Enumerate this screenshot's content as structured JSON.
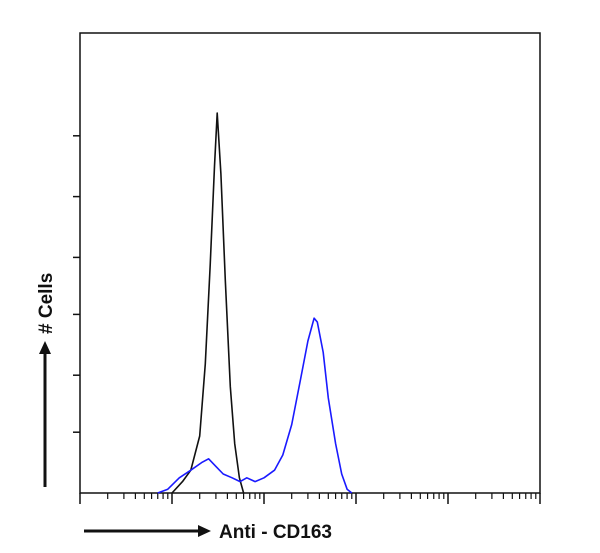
{
  "chart_data": {
    "type": "line",
    "title": "",
    "xlabel": "Anti - CD163",
    "ylabel": "# Cells",
    "x_scale": "log",
    "xlim": [
      0.1,
      10000
    ],
    "ylim": [
      0,
      100
    ],
    "grid": false,
    "legend": "none",
    "y_tick_values": [
      16,
      31,
      47,
      62,
      78,
      94
    ],
    "series": [
      {
        "color": "#111111",
        "points": [
          [
            1.0,
            0
          ],
          [
            1.3,
            3
          ],
          [
            1.6,
            6
          ],
          [
            2.0,
            15
          ],
          [
            2.3,
            34
          ],
          [
            2.6,
            60
          ],
          [
            2.9,
            86
          ],
          [
            3.1,
            100
          ],
          [
            3.4,
            84
          ],
          [
            3.8,
            56
          ],
          [
            4.3,
            28
          ],
          [
            4.8,
            13
          ],
          [
            5.4,
            4
          ],
          [
            6.0,
            0
          ]
        ]
      },
      {
        "color": "#1a1aff",
        "points": [
          [
            0.7,
            0
          ],
          [
            0.9,
            1
          ],
          [
            1.2,
            4
          ],
          [
            1.6,
            6
          ],
          [
            2.1,
            8
          ],
          [
            2.5,
            9
          ],
          [
            3.0,
            7
          ],
          [
            3.6,
            5
          ],
          [
            4.5,
            4
          ],
          [
            5.5,
            3
          ],
          [
            6.5,
            4
          ],
          [
            8.0,
            3
          ],
          [
            10.0,
            4
          ],
          [
            13.0,
            6
          ],
          [
            16.0,
            10
          ],
          [
            20.0,
            18
          ],
          [
            25.0,
            30
          ],
          [
            30.0,
            40
          ],
          [
            35.0,
            46
          ],
          [
            38.0,
            45
          ],
          [
            44.0,
            37
          ],
          [
            50.0,
            25
          ],
          [
            60.0,
            13
          ],
          [
            70.0,
            5
          ],
          [
            80.0,
            1
          ],
          [
            90.0,
            0
          ]
        ]
      }
    ]
  }
}
